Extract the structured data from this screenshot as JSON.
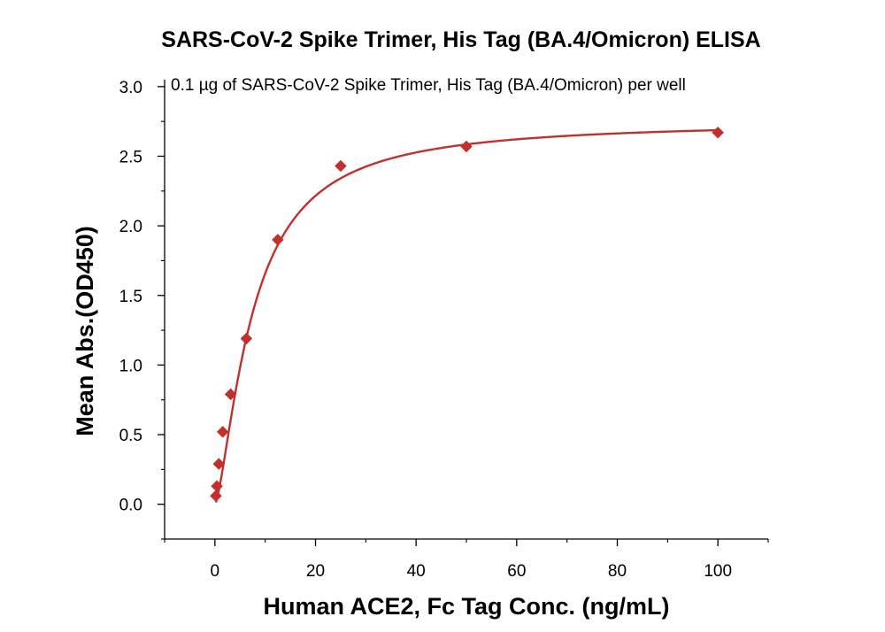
{
  "chart_data": {
    "type": "scatter",
    "title": "SARS-CoV-2 Spike Trimer, His Tag (BA.4/Omicron) ELISA",
    "subtitle": "0.1 µg of SARS-CoV-2 Spike Trimer, His Tag (BA.4/Omicron) per well",
    "xlabel": "Human ACE2, Fc Tag Conc. (ng/mL)",
    "ylabel": "Mean Abs.(OD450)",
    "xlim": [
      -10,
      110
    ],
    "ylim": [
      -0.25,
      3.05
    ],
    "xticks": [
      0,
      20,
      40,
      60,
      80,
      100
    ],
    "yticks": [
      0.0,
      0.5,
      1.0,
      1.5,
      2.0,
      2.5,
      3.0
    ],
    "ytick_labels": [
      "0.0",
      "0.5",
      "1.0",
      "1.5",
      "2.0",
      "2.5",
      "3.0"
    ],
    "grid": false,
    "legend": "none",
    "series": [
      {
        "marker": "diamond",
        "color": "#c0312e",
        "points": [
          {
            "x": 0.195,
            "y": 0.06
          },
          {
            "x": 0.39,
            "y": 0.13
          },
          {
            "x": 0.78,
            "y": 0.29
          },
          {
            "x": 1.56,
            "y": 0.52
          },
          {
            "x": 3.13,
            "y": 0.79
          },
          {
            "x": 6.25,
            "y": 1.19
          },
          {
            "x": 12.5,
            "y": 1.9
          },
          {
            "x": 25,
            "y": 2.43
          },
          {
            "x": 50,
            "y": 2.57
          },
          {
            "x": 100,
            "y": 2.67
          }
        ],
        "fit": {
          "type": "4PL",
          "bottom": 0.0,
          "top": 2.75,
          "ec50": 7.5,
          "hill": 1.45,
          "color": "#c0312e"
        }
      }
    ]
  }
}
